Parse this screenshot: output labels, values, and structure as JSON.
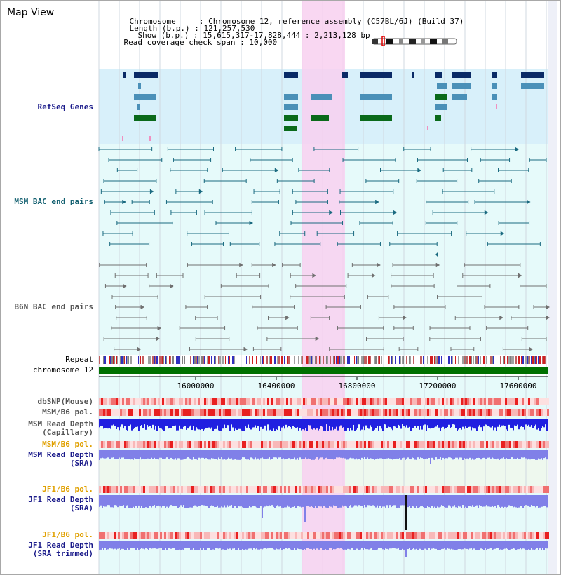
{
  "title": "Map View",
  "info": {
    "chromosome_label": "Chromosome",
    "chromosome_value": "Chromosome 12, reference assembly (C57BL/6J) (Build 37)",
    "length_label": "Length (b.p.)",
    "length_value": "121,257,530",
    "show_label": "Show (b.p.)",
    "show_value": "15,615,317-17,828,444 : 2,213,128 bp",
    "coverage_label": "Read coverage check span",
    "coverage_value": "10,000"
  },
  "tracks": {
    "refseq": "RefSeq Genes",
    "msm_bac": "MSM BAC end pairs",
    "b6n_bac": "B6N BAC end pairs",
    "repeat": "Repeat",
    "chromosome": "chromosome 12",
    "dbsnp": "dbSNP(Mouse)",
    "msm_b6_pol_1": "MSM/B6 pol.",
    "msm_depth_cap_1": "MSM Read Depth",
    "msm_depth_cap_2": "(Capillary)",
    "msm_b6_pol_2": "MSM/B6 pol.",
    "msm_depth_sra_1": "MSM Read Depth",
    "msm_depth_sra_2": "(SRA)",
    "jf1_b6_pol_1": "JF1/B6 pol.",
    "jf1_depth_sra_1": "JF1 Read Depth",
    "jf1_depth_sra_2": "(SRA)",
    "jf1_b6_pol_2": "JF1/B6 pol.",
    "jf1_depth_trim_1": "JF1 Read Depth",
    "jf1_depth_trim_2": "(SRA trimmed)"
  },
  "axis": {
    "ticks": [
      "16000000",
      "16400000",
      "16800000",
      "17200000",
      "17600000"
    ]
  },
  "colors": {
    "refseq_bg": "#d8f0fa",
    "track_bg": "#e6fafa",
    "highlight": "#f8d0f0",
    "gene_navy": "#0a2a66",
    "gene_blue": "#4a90b8",
    "gene_green": "#0a6a1a",
    "msm_bac": "#1a6a80",
    "b6n_bac": "#707070",
    "chromosome_bar": "#007000",
    "depth_capillary": "#2020e0",
    "depth_sra": "#8080e8",
    "label_navy": "#1a1a8a",
    "label_teal": "#136070",
    "label_orange": "#e0a000",
    "label_gray": "#555555"
  }
}
